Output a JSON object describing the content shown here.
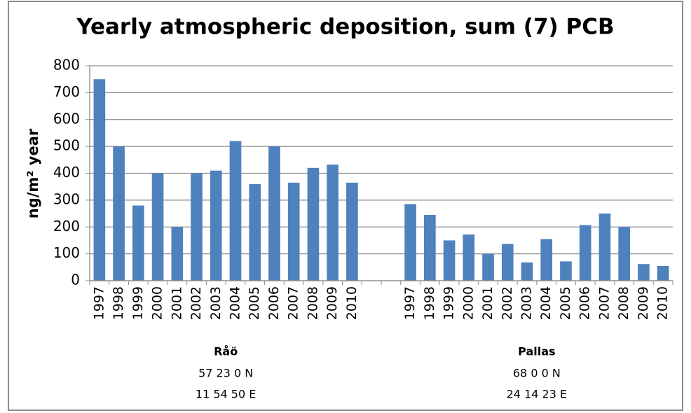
{
  "chart_data": {
    "type": "bar",
    "title": "Yearly atmospheric deposition, sum (7) PCB",
    "y_label": "ng/m² year",
    "categories": [
      "1997",
      "1998",
      "1999",
      "2000",
      "2001",
      "2002",
      "2003",
      "2004",
      "2005",
      "2006",
      "2007",
      "2008",
      "2009",
      "2010",
      null,
      null,
      "1997",
      "1998",
      "1999",
      "2000",
      "2001",
      "2002",
      "2003",
      "2004",
      "2005",
      "2006",
      "2007",
      "2008",
      "2009",
      "2010"
    ],
    "values": [
      750,
      500,
      280,
      400,
      200,
      400,
      410,
      520,
      360,
      500,
      365,
      420,
      432,
      365,
      null,
      null,
      285,
      245,
      150,
      172,
      100,
      137,
      68,
      155,
      72,
      207,
      250,
      200,
      62,
      55
    ],
    "color": "#4f81bd",
    "ylim": [
      0,
      800
    ],
    "yticks": [
      0,
      100,
      200,
      300,
      400,
      500,
      600,
      700,
      800
    ],
    "grid": true,
    "groups": [
      {
        "name": "Råö",
        "lat": "57 23 0 N",
        "lon": "11 54 50 E"
      },
      {
        "name": "Pallas",
        "lat": "68 0 0 N",
        "lon": "24 14 23 E"
      }
    ]
  }
}
